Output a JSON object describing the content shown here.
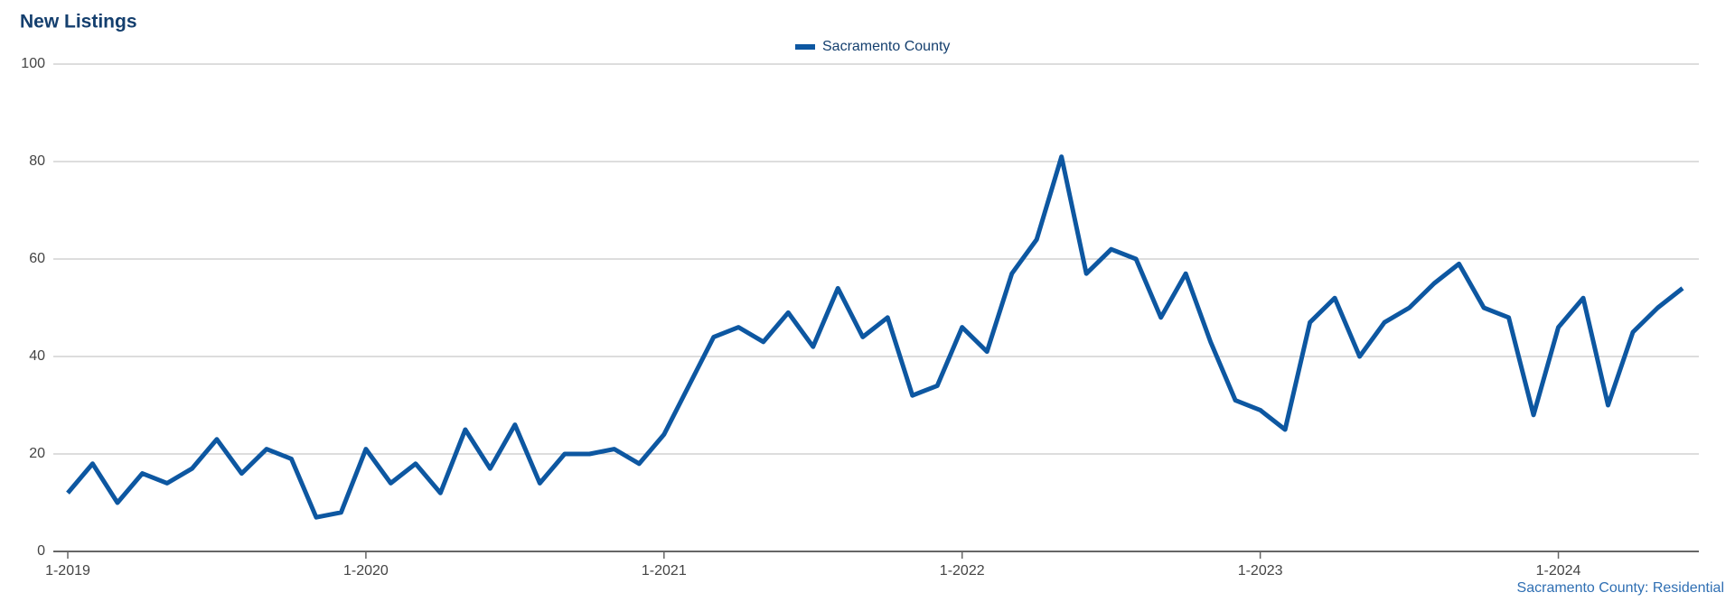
{
  "title": "New Listings",
  "chart_data": {
    "type": "line",
    "categories": [
      "1-2019",
      null,
      null,
      null,
      null,
      null,
      null,
      null,
      null,
      null,
      null,
      null,
      "1-2020",
      null,
      null,
      null,
      null,
      null,
      null,
      null,
      null,
      null,
      null,
      null,
      "1-2021",
      null,
      null,
      null,
      null,
      null,
      null,
      null,
      null,
      null,
      null,
      null,
      "1-2022",
      null,
      null,
      null,
      null,
      null,
      null,
      null,
      null,
      null,
      null,
      null,
      "1-2023",
      null,
      null,
      null,
      null,
      null,
      null,
      null,
      null,
      null,
      null,
      null,
      "1-2024",
      null,
      null,
      null,
      null,
      null
    ],
    "series": [
      {
        "name": "Sacramento County",
        "color": "#0d57a1",
        "values": [
          12,
          18,
          10,
          16,
          14,
          17,
          23,
          16,
          21,
          19,
          7,
          8,
          21,
          14,
          18,
          12,
          25,
          17,
          26,
          14,
          20,
          20,
          21,
          18,
          24,
          34,
          44,
          46,
          43,
          49,
          42,
          54,
          44,
          48,
          32,
          34,
          46,
          41,
          57,
          64,
          81,
          57,
          62,
          60,
          48,
          57,
          43,
          31,
          29,
          25,
          47,
          52,
          40,
          47,
          50,
          55,
          59,
          50,
          48,
          28,
          46,
          52,
          30,
          45,
          50,
          54
        ]
      }
    ],
    "ylim": [
      0,
      100
    ],
    "yticks": [
      0,
      20,
      40,
      60,
      80,
      100
    ],
    "grid": true,
    "legend": "top"
  },
  "footer": "Sacramento County: Residential"
}
